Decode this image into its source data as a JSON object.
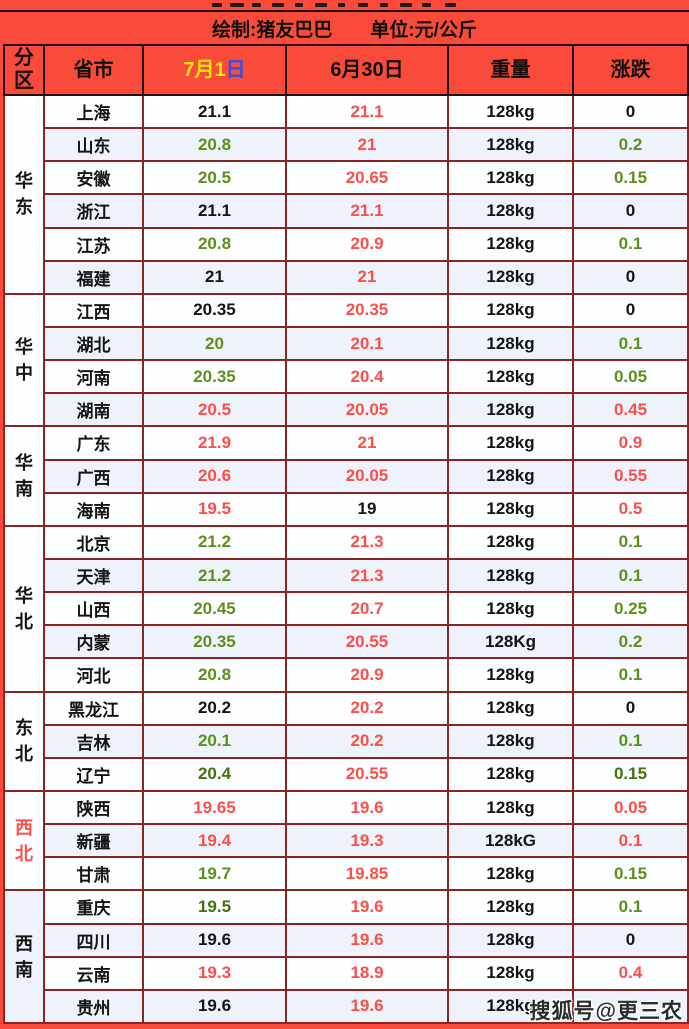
{
  "colors": {
    "background_red": "#fa4a3a",
    "table_border": "#8c2422",
    "header_border": "#240a0a",
    "row_white": "#fdfeff",
    "row_alt_blue": "#edf2fb",
    "price_up_red": "#fb4f48",
    "price_down_green": "#5d8f1b",
    "price_down_dark_green": "#47700f",
    "price_flat_black": "#141414",
    "header_date_yellow": "#ffe60a",
    "header_day_blue": "#2b50f0"
  },
  "credit_row": {
    "credit_label": "绘制:猪友巴巴",
    "unit_label": "单位:元/公斤"
  },
  "header": {
    "region": "分区",
    "province": "省市",
    "date1": "7月1",
    "date1_day": "日",
    "date2": "6月30日",
    "weight": "重量",
    "change": "涨跌"
  },
  "watermark": "搜狐号@更三农",
  "chart_data": {
    "type": "table",
    "unit": "元/公斤",
    "weight_basis": "128kg",
    "columns": [
      "分区",
      "省市",
      "7月1日",
      "6月30日",
      "重量",
      "涨跌"
    ],
    "regions": [
      {
        "name": "华东",
        "highlight": false,
        "bg": "white",
        "rows": [
          {
            "province": "上海",
            "jul1": "21.1",
            "jul1_color": "flat",
            "jun30": "21.1",
            "jun30_color": "up",
            "weight": "128kg",
            "change": "0",
            "change_color": "flat"
          },
          {
            "province": "山东",
            "jul1": "20.8",
            "jul1_color": "down",
            "jun30": "21",
            "jun30_color": "up",
            "weight": "128kg",
            "change": "0.2",
            "change_color": "down"
          },
          {
            "province": "安徽",
            "jul1": "20.5",
            "jul1_color": "down",
            "jun30": "20.65",
            "jun30_color": "up",
            "weight": "128kg",
            "change": "0.15",
            "change_color": "down"
          },
          {
            "province": "浙江",
            "jul1": "21.1",
            "jul1_color": "flat",
            "jun30": "21.1",
            "jun30_color": "up",
            "weight": "128kg",
            "change": "0",
            "change_color": "flat"
          },
          {
            "province": "江苏",
            "jul1": "20.8",
            "jul1_color": "down",
            "jun30": "20.9",
            "jun30_color": "up",
            "weight": "128kg",
            "change": "0.1",
            "change_color": "down"
          },
          {
            "province": "福建",
            "jul1": "21",
            "jul1_color": "flat",
            "jun30": "21",
            "jun30_color": "up",
            "weight": "128kg",
            "change": "0",
            "change_color": "flat"
          }
        ]
      },
      {
        "name": "华中",
        "highlight": false,
        "bg": "white",
        "rows": [
          {
            "province": "江西",
            "jul1": "20.35",
            "jul1_color": "flat",
            "jun30": "20.35",
            "jun30_color": "up",
            "weight": "128kg",
            "change": "0",
            "change_color": "flat"
          },
          {
            "province": "湖北",
            "jul1": "20",
            "jul1_color": "down",
            "jun30": "20.1",
            "jun30_color": "up",
            "weight": "128kg",
            "change": "0.1",
            "change_color": "down"
          },
          {
            "province": "河南",
            "jul1": "20.35",
            "jul1_color": "down",
            "jun30": "20.4",
            "jun30_color": "up",
            "weight": "128kg",
            "change": "0.05",
            "change_color": "down"
          },
          {
            "province": "湖南",
            "jul1": "20.5",
            "jul1_color": "up",
            "jun30": "20.05",
            "jun30_color": "up",
            "weight": "128kg",
            "change": "0.45",
            "change_color": "up"
          }
        ]
      },
      {
        "name": "华南",
        "highlight": false,
        "bg": "white",
        "rows": [
          {
            "province": "广东",
            "jul1": "21.9",
            "jul1_color": "up",
            "jun30": "21",
            "jun30_color": "up",
            "weight": "128kg",
            "change": "0.9",
            "change_color": "up"
          },
          {
            "province": "广西",
            "jul1": "20.6",
            "jul1_color": "up",
            "jun30": "20.05",
            "jun30_color": "up",
            "weight": "128kg",
            "change": "0.55",
            "change_color": "up"
          },
          {
            "province": "海南",
            "jul1": "19.5",
            "jul1_color": "up",
            "jun30": "19",
            "jun30_color": "flat",
            "weight": "128kg",
            "change": "0.5",
            "change_color": "up"
          }
        ]
      },
      {
        "name": "华北",
        "highlight": false,
        "bg": "white",
        "rows": [
          {
            "province": "北京",
            "jul1": "21.2",
            "jul1_color": "down",
            "jun30": "21.3",
            "jun30_color": "up",
            "weight": "128kg",
            "change": "0.1",
            "change_color": "down"
          },
          {
            "province": "天津",
            "jul1": "21.2",
            "jul1_color": "down",
            "jun30": "21.3",
            "jun30_color": "up",
            "weight": "128kg",
            "change": "0.1",
            "change_color": "down"
          },
          {
            "province": "山西",
            "jul1": "20.45",
            "jul1_color": "down",
            "jun30": "20.7",
            "jun30_color": "up",
            "weight": "128kg",
            "change": "0.25",
            "change_color": "down"
          },
          {
            "province": "内蒙",
            "jul1": "20.35",
            "jul1_color": "down",
            "jun30": "20.55",
            "jun30_color": "up",
            "weight": "128Kg",
            "change": "0.2",
            "change_color": "down"
          },
          {
            "province": "河北",
            "jul1": "20.8",
            "jul1_color": "down",
            "jun30": "20.9",
            "jun30_color": "up",
            "weight": "128kg",
            "change": "0.1",
            "change_color": "down"
          }
        ]
      },
      {
        "name": "东北",
        "highlight": false,
        "bg": "white",
        "rows": [
          {
            "province": "黑龙江",
            "jul1": "20.2",
            "jul1_color": "flat",
            "jun30": "20.2",
            "jun30_color": "up",
            "weight": "128kg",
            "change": "0",
            "change_color": "flat"
          },
          {
            "province": "吉林",
            "jul1": "20.1",
            "jul1_color": "down",
            "jun30": "20.2",
            "jun30_color": "up",
            "weight": "128kg",
            "change": "0.1",
            "change_color": "down"
          },
          {
            "province": "辽宁",
            "jul1": "20.4",
            "jul1_color": "down_dark",
            "jun30": "20.55",
            "jun30_color": "up",
            "weight": "128kg",
            "change": "0.15",
            "change_color": "down_dark"
          }
        ]
      },
      {
        "name": "西北",
        "highlight": true,
        "bg": "white",
        "rows": [
          {
            "province": "陕西",
            "jul1": "19.65",
            "jul1_color": "up",
            "jun30": "19.6",
            "jun30_color": "up",
            "weight": "128kg",
            "change": "0.05",
            "change_color": "up"
          },
          {
            "province": "新疆",
            "jul1": "19.4",
            "jul1_color": "up",
            "jun30": "19.3",
            "jun30_color": "up",
            "weight": "128kG",
            "change": "0.1",
            "change_color": "up"
          },
          {
            "province": "甘肃",
            "jul1": "19.7",
            "jul1_color": "down",
            "jun30": "19.85",
            "jun30_color": "up",
            "weight": "128kg",
            "change": "0.15",
            "change_color": "down"
          }
        ]
      },
      {
        "name": "西南",
        "highlight": false,
        "bg": "blue",
        "rows": [
          {
            "province": "重庆",
            "jul1": "19.5",
            "jul1_color": "down_dark",
            "jun30": "19.6",
            "jun30_color": "up",
            "weight": "128kg",
            "change": "0.1",
            "change_color": "down"
          },
          {
            "province": "四川",
            "jul1": "19.6",
            "jul1_color": "flat",
            "jun30": "19.6",
            "jun30_color": "up",
            "weight": "128kg",
            "change": "0",
            "change_color": "flat"
          },
          {
            "province": "云南",
            "jul1": "19.3",
            "jul1_color": "up",
            "jun30": "18.9",
            "jun30_color": "up",
            "weight": "128kg",
            "change": "0.4",
            "change_color": "up"
          },
          {
            "province": "贵州",
            "jul1": "19.6",
            "jul1_color": "flat",
            "jun30": "19.6",
            "jun30_color": "up",
            "weight": "128kg",
            "change": "",
            "change_color": "flat"
          }
        ]
      }
    ]
  }
}
